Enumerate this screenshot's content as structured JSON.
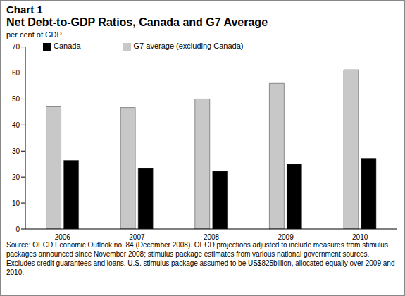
{
  "chart_data": {
    "type": "bar",
    "chart_label": "Chart 1",
    "title": "Net Debt-to-GDP Ratios, Canada and G7 Average",
    "ylabel": "per cent of GDP",
    "categories": [
      "2006",
      "2007",
      "2008",
      "2009",
      "2010"
    ],
    "series": [
      {
        "name": "G7 average (excluding Canada)",
        "color": "#c8c8c8",
        "values": [
          47,
          46.7,
          50,
          56,
          61.2
        ]
      },
      {
        "name": "Canada",
        "color": "#000000",
        "values": [
          26.4,
          23.3,
          22.2,
          25,
          27.2
        ]
      }
    ],
    "ylim": [
      0,
      70
    ],
    "yticks": [
      0,
      10,
      20,
      30,
      40,
      50,
      60,
      70
    ],
    "grid": false,
    "legend": "top-left",
    "annotations": [
      "Source: OECD Economic Outlook no. 84 (December 2008). OECD projections adjusted to include measures from stimulus packages announced since November 2008; stimulus package estimates from various national government sources. Excludes credit guarantees and loans. U.S. stimulus package assumed to be US$825billion, allocated equally over 2009 and 2010."
    ]
  }
}
